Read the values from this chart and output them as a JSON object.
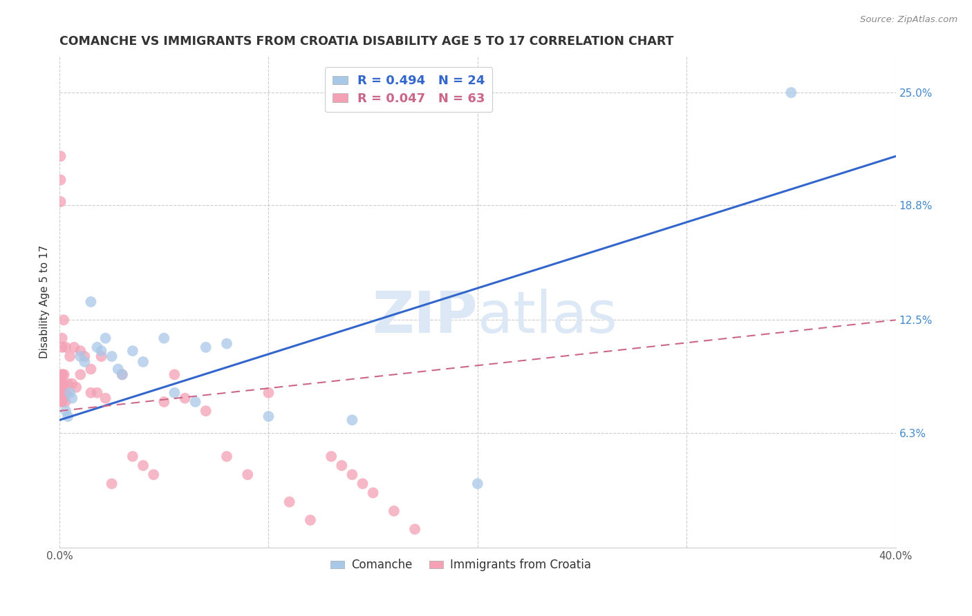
{
  "title": "COMANCHE VS IMMIGRANTS FROM CROATIA DISABILITY AGE 5 TO 17 CORRELATION CHART",
  "source": "Source: ZipAtlas.com",
  "ylabel": "Disability Age 5 to 17",
  "legend_label1": "Comanche",
  "legend_label2": "Immigrants from Croatia",
  "R1": 0.494,
  "N1": 24,
  "R2": 0.047,
  "N2": 63,
  "xmin": 0.0,
  "xmax": 40.0,
  "ymin": 0.0,
  "ymax": 27.0,
  "yticks": [
    6.3,
    12.5,
    18.8,
    25.0
  ],
  "ytick_labels": [
    "6.3%",
    "12.5%",
    "18.8%",
    "25.0%"
  ],
  "xticks": [
    0.0,
    10.0,
    20.0,
    30.0,
    40.0
  ],
  "xtick_labels": [
    "0.0%",
    "",
    "",
    "",
    "40.0%"
  ],
  "color_blue": "#a8c8e8",
  "color_pink": "#f4a0b5",
  "line_blue": "#3366cc",
  "line_pink": "#cc6688",
  "background": "#ffffff",
  "grid_color": "#cccccc",
  "watermark_color": "#dce8f5",
  "blue_line_x": [
    0,
    40
  ],
  "blue_line_y": [
    7.0,
    21.5
  ],
  "pink_line_x": [
    0,
    40
  ],
  "pink_line_y": [
    7.5,
    12.5
  ],
  "comanche_x": [
    0.3,
    0.4,
    0.5,
    0.6,
    1.0,
    1.2,
    1.5,
    1.8,
    2.0,
    2.2,
    2.5,
    2.8,
    3.0,
    3.5,
    4.0,
    5.0,
    5.5,
    6.5,
    7.0,
    8.0,
    10.0,
    14.0,
    20.0,
    35.0
  ],
  "comanche_y": [
    7.5,
    7.2,
    8.5,
    8.2,
    10.5,
    10.2,
    13.5,
    11.0,
    10.8,
    11.5,
    10.5,
    9.8,
    9.5,
    10.8,
    10.2,
    11.5,
    8.5,
    8.0,
    11.0,
    11.2,
    7.2,
    7.0,
    3.5,
    25.0
  ],
  "croatia_x": [
    0.05,
    0.05,
    0.05,
    0.05,
    0.07,
    0.07,
    0.08,
    0.08,
    0.09,
    0.09,
    0.1,
    0.1,
    0.1,
    0.12,
    0.12,
    0.13,
    0.13,
    0.14,
    0.15,
    0.15,
    0.16,
    0.17,
    0.18,
    0.2,
    0.22,
    0.25,
    0.28,
    0.3,
    0.35,
    0.4,
    0.5,
    0.6,
    0.7,
    0.8,
    1.0,
    1.0,
    1.2,
    1.5,
    1.5,
    1.8,
    2.0,
    2.2,
    2.5,
    3.0,
    3.5,
    4.0,
    4.5,
    5.0,
    5.5,
    6.0,
    7.0,
    8.0,
    9.0,
    10.0,
    11.0,
    12.0,
    13.0,
    13.5,
    14.0,
    14.5,
    15.0,
    16.0,
    17.0
  ],
  "croatia_y": [
    21.5,
    20.2,
    19.0,
    8.5,
    9.2,
    8.8,
    8.5,
    8.0,
    9.0,
    8.5,
    9.5,
    9.0,
    8.5,
    11.5,
    8.8,
    11.0,
    8.5,
    8.0,
    9.5,
    8.8,
    8.5,
    9.0,
    8.2,
    12.5,
    9.5,
    8.5,
    8.0,
    11.0,
    8.5,
    9.0,
    10.5,
    9.0,
    11.0,
    8.8,
    10.8,
    9.5,
    10.5,
    9.8,
    8.5,
    8.5,
    10.5,
    8.2,
    3.5,
    9.5,
    5.0,
    4.5,
    4.0,
    8.0,
    9.5,
    8.2,
    7.5,
    5.0,
    4.0,
    8.5,
    2.5,
    1.5,
    5.0,
    4.5,
    4.0,
    3.5,
    3.0,
    2.0,
    1.0
  ]
}
